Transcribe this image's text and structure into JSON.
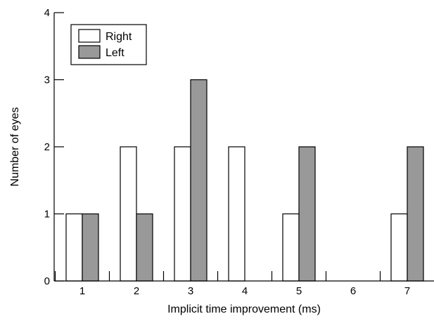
{
  "chart_data": {
    "type": "bar",
    "xlabel": "Implicit time improvement (ms)",
    "ylabel": "Number of eyes",
    "categories": [
      "1",
      "2",
      "3",
      "4",
      "5",
      "6",
      "7"
    ],
    "series": [
      {
        "name": "Right",
        "color": "#ffffff",
        "values": [
          1,
          2,
          2,
          2,
          1,
          0,
          1
        ]
      },
      {
        "name": "Left",
        "color": "#999999",
        "values": [
          1,
          1,
          3,
          0,
          2,
          0,
          2
        ]
      }
    ],
    "ylim": [
      0,
      4
    ],
    "yticks": [
      "0",
      "1",
      "2",
      "3",
      "4"
    ],
    "grid": false,
    "legend_position": "top-left"
  }
}
